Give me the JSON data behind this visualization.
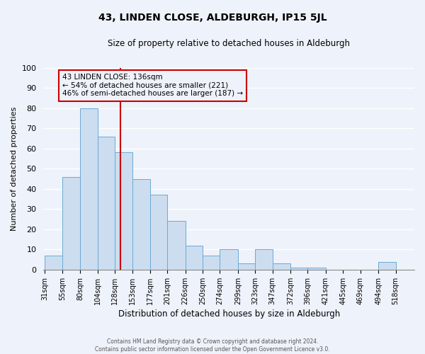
{
  "title": "43, LINDEN CLOSE, ALDEBURGH, IP15 5JL",
  "subtitle": "Size of property relative to detached houses in Aldeburgh",
  "xlabel": "Distribution of detached houses by size in Aldeburgh",
  "ylabel": "Number of detached properties",
  "bar_values": [
    7,
    46,
    80,
    66,
    58,
    45,
    37,
    24,
    12,
    7,
    10,
    3,
    10,
    3,
    1,
    1,
    0,
    0,
    0,
    4
  ],
  "bin_edges": [
    31,
    55,
    80,
    104,
    128,
    153,
    177,
    201,
    226,
    250,
    274,
    299,
    323,
    347,
    372,
    396,
    421,
    445,
    469,
    494,
    518
  ],
  "bin_labels": [
    "31sqm",
    "55sqm",
    "80sqm",
    "104sqm",
    "128sqm",
    "153sqm",
    "177sqm",
    "201sqm",
    "226sqm",
    "250sqm",
    "274sqm",
    "299sqm",
    "323sqm",
    "347sqm",
    "372sqm",
    "396sqm",
    "421sqm",
    "445sqm",
    "469sqm",
    "494sqm",
    "518sqm"
  ],
  "bar_color": "#ccddf0",
  "bar_edge_color": "#6aaad4",
  "vline_x": 136,
  "vline_color": "#cc0000",
  "ylim": [
    0,
    100
  ],
  "annotation_title": "43 LINDEN CLOSE: 136sqm",
  "annotation_line1": "← 54% of detached houses are smaller (221)",
  "annotation_line2": "46% of semi-detached houses are larger (187) →",
  "annotation_box_color": "#cc0000",
  "footer_line1": "Contains HM Land Registry data © Crown copyright and database right 2024.",
  "footer_line2": "Contains public sector information licensed under the Open Government Licence v3.0.",
  "background_color": "#eef2fa",
  "grid_color": "#ffffff"
}
